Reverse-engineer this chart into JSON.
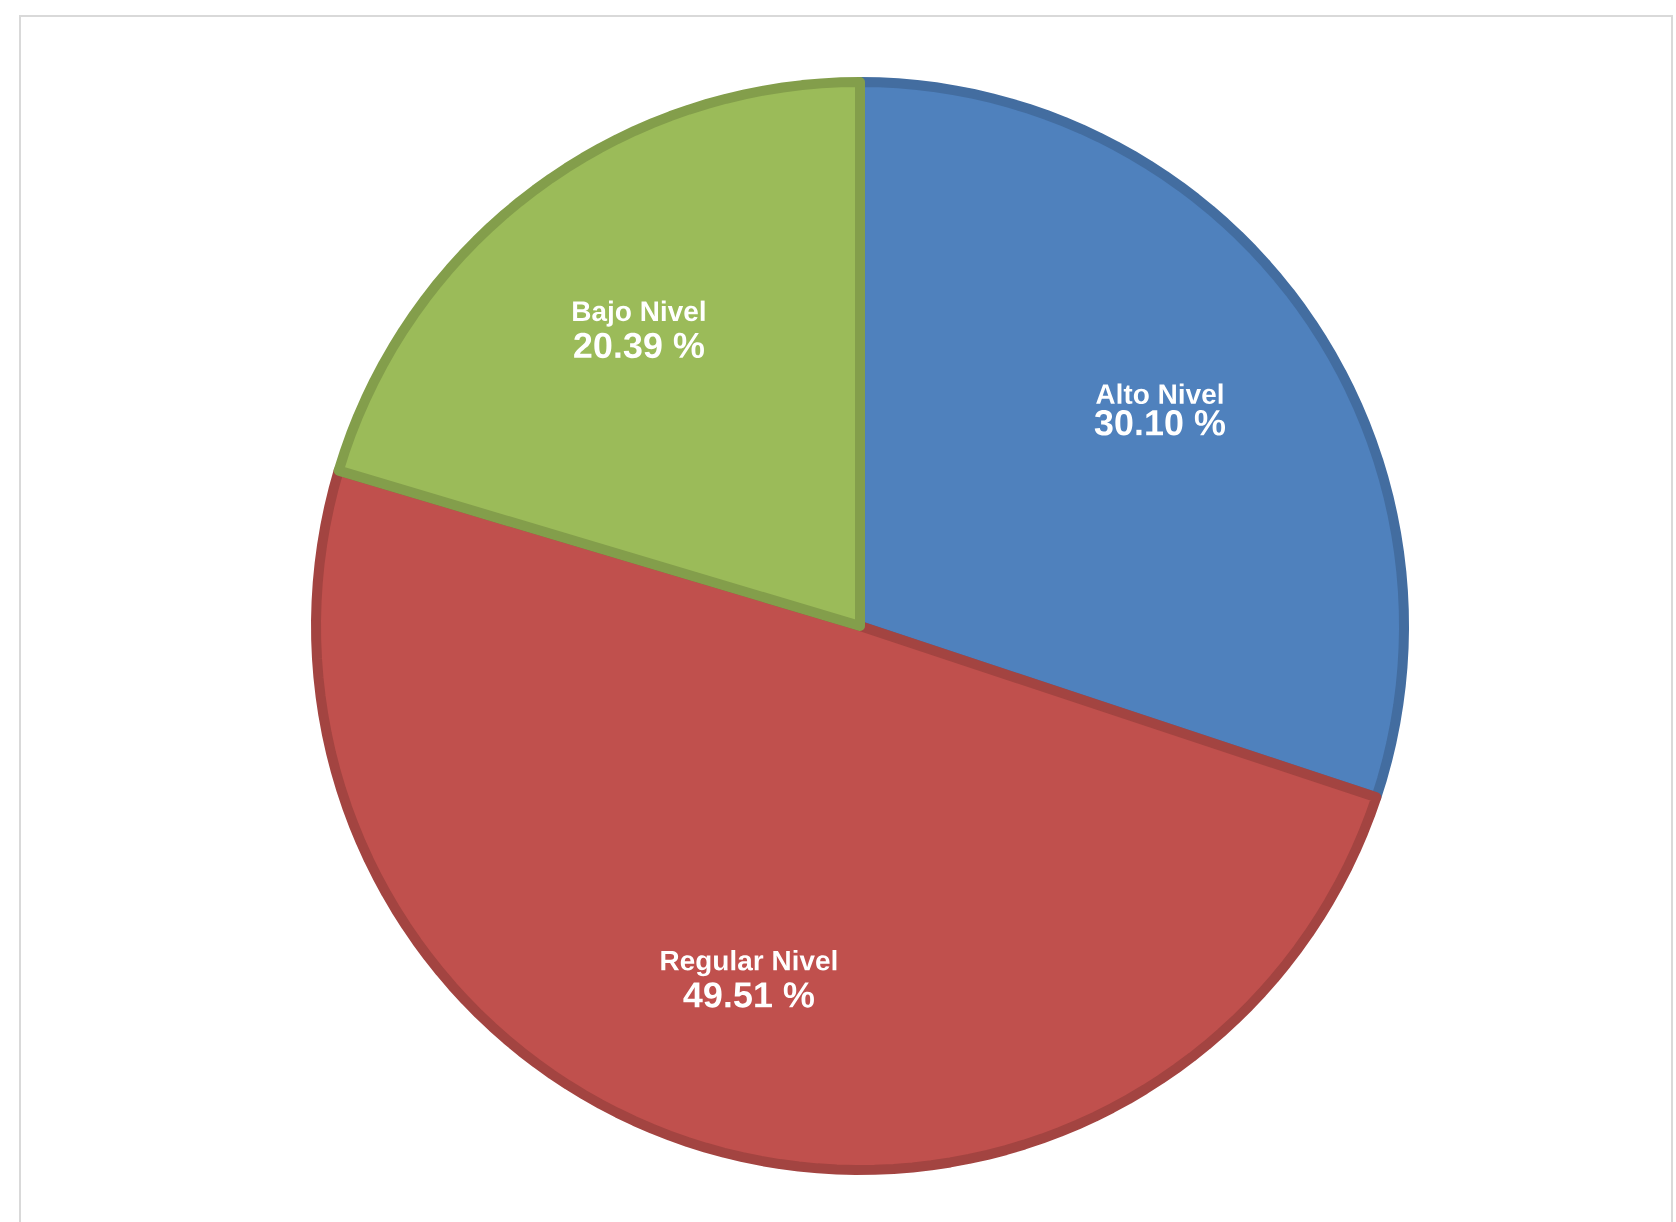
{
  "chart_data": {
    "type": "pie",
    "categories": [
      "Alto Nivel",
      "Regular Nivel",
      "Bajo Nivel"
    ],
    "values": [
      30.1,
      49.51,
      20.39
    ],
    "value_labels": [
      "30.10 %",
      "49.51 %",
      "20.39 %"
    ],
    "colors": [
      "#4f81bd",
      "#c0504d",
      "#9bbb59"
    ]
  }
}
